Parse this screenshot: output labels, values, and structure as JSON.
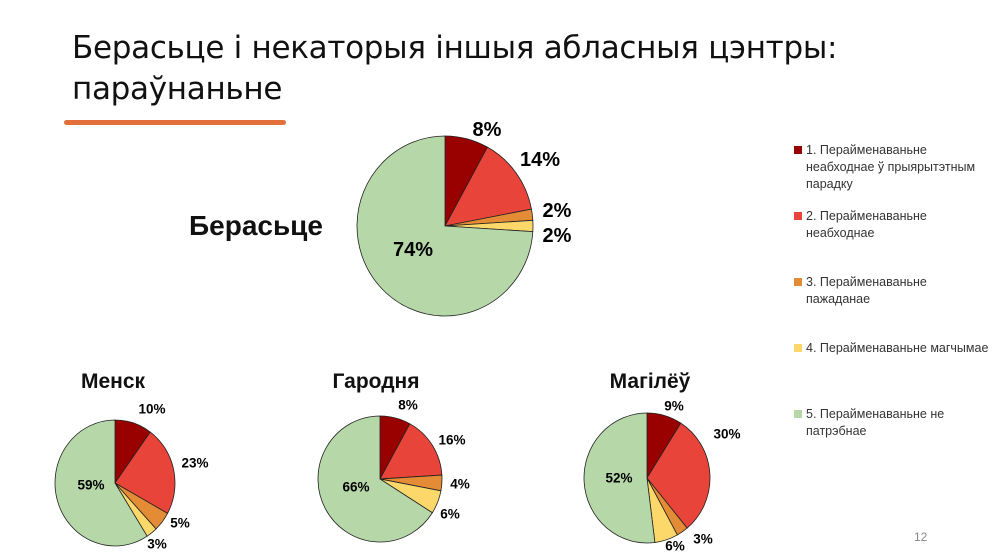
{
  "title": "Берасьце і некаторыя іншыя абласныя цэнтры: параўнаньне",
  "page_number": "12",
  "legend": [
    {
      "label": "1. Перайменаваньне неабходнае ў прыярытэтным парадку",
      "color": "#990000"
    },
    {
      "label": "2. Перайменаваньне неабходнае",
      "color": "#e8443a"
    },
    {
      "label": "3. Перайменаваньне пажаданае",
      "color": "#e38b35"
    },
    {
      "label": "4. Перайменаваньне магчымае",
      "color": "#fcd86a"
    },
    {
      "label": "5. Перайменаваньне не патрэбнае",
      "color": "#b6d7a8"
    }
  ],
  "chart_data": [
    {
      "type": "pie",
      "title": "Берасьце",
      "values": [
        8,
        14,
        2,
        2,
        74
      ],
      "labels": [
        "8%",
        "14%",
        "2%",
        "2%",
        "74%"
      ]
    },
    {
      "type": "pie",
      "title": "Менск",
      "values": [
        10,
        23,
        5,
        3,
        59
      ],
      "labels": [
        "10%",
        "23%",
        "5%",
        "3%",
        "59%"
      ]
    },
    {
      "type": "pie",
      "title": "Гародня",
      "values": [
        8,
        16,
        4,
        6,
        66
      ],
      "labels": [
        "8%",
        "16%",
        "4%",
        "6%",
        "66%"
      ]
    },
    {
      "type": "pie",
      "title": "Магілёў",
      "values": [
        9,
        30,
        3,
        6,
        52
      ],
      "labels": [
        "9%",
        "30%",
        "3%",
        "6%",
        "52%"
      ]
    }
  ]
}
